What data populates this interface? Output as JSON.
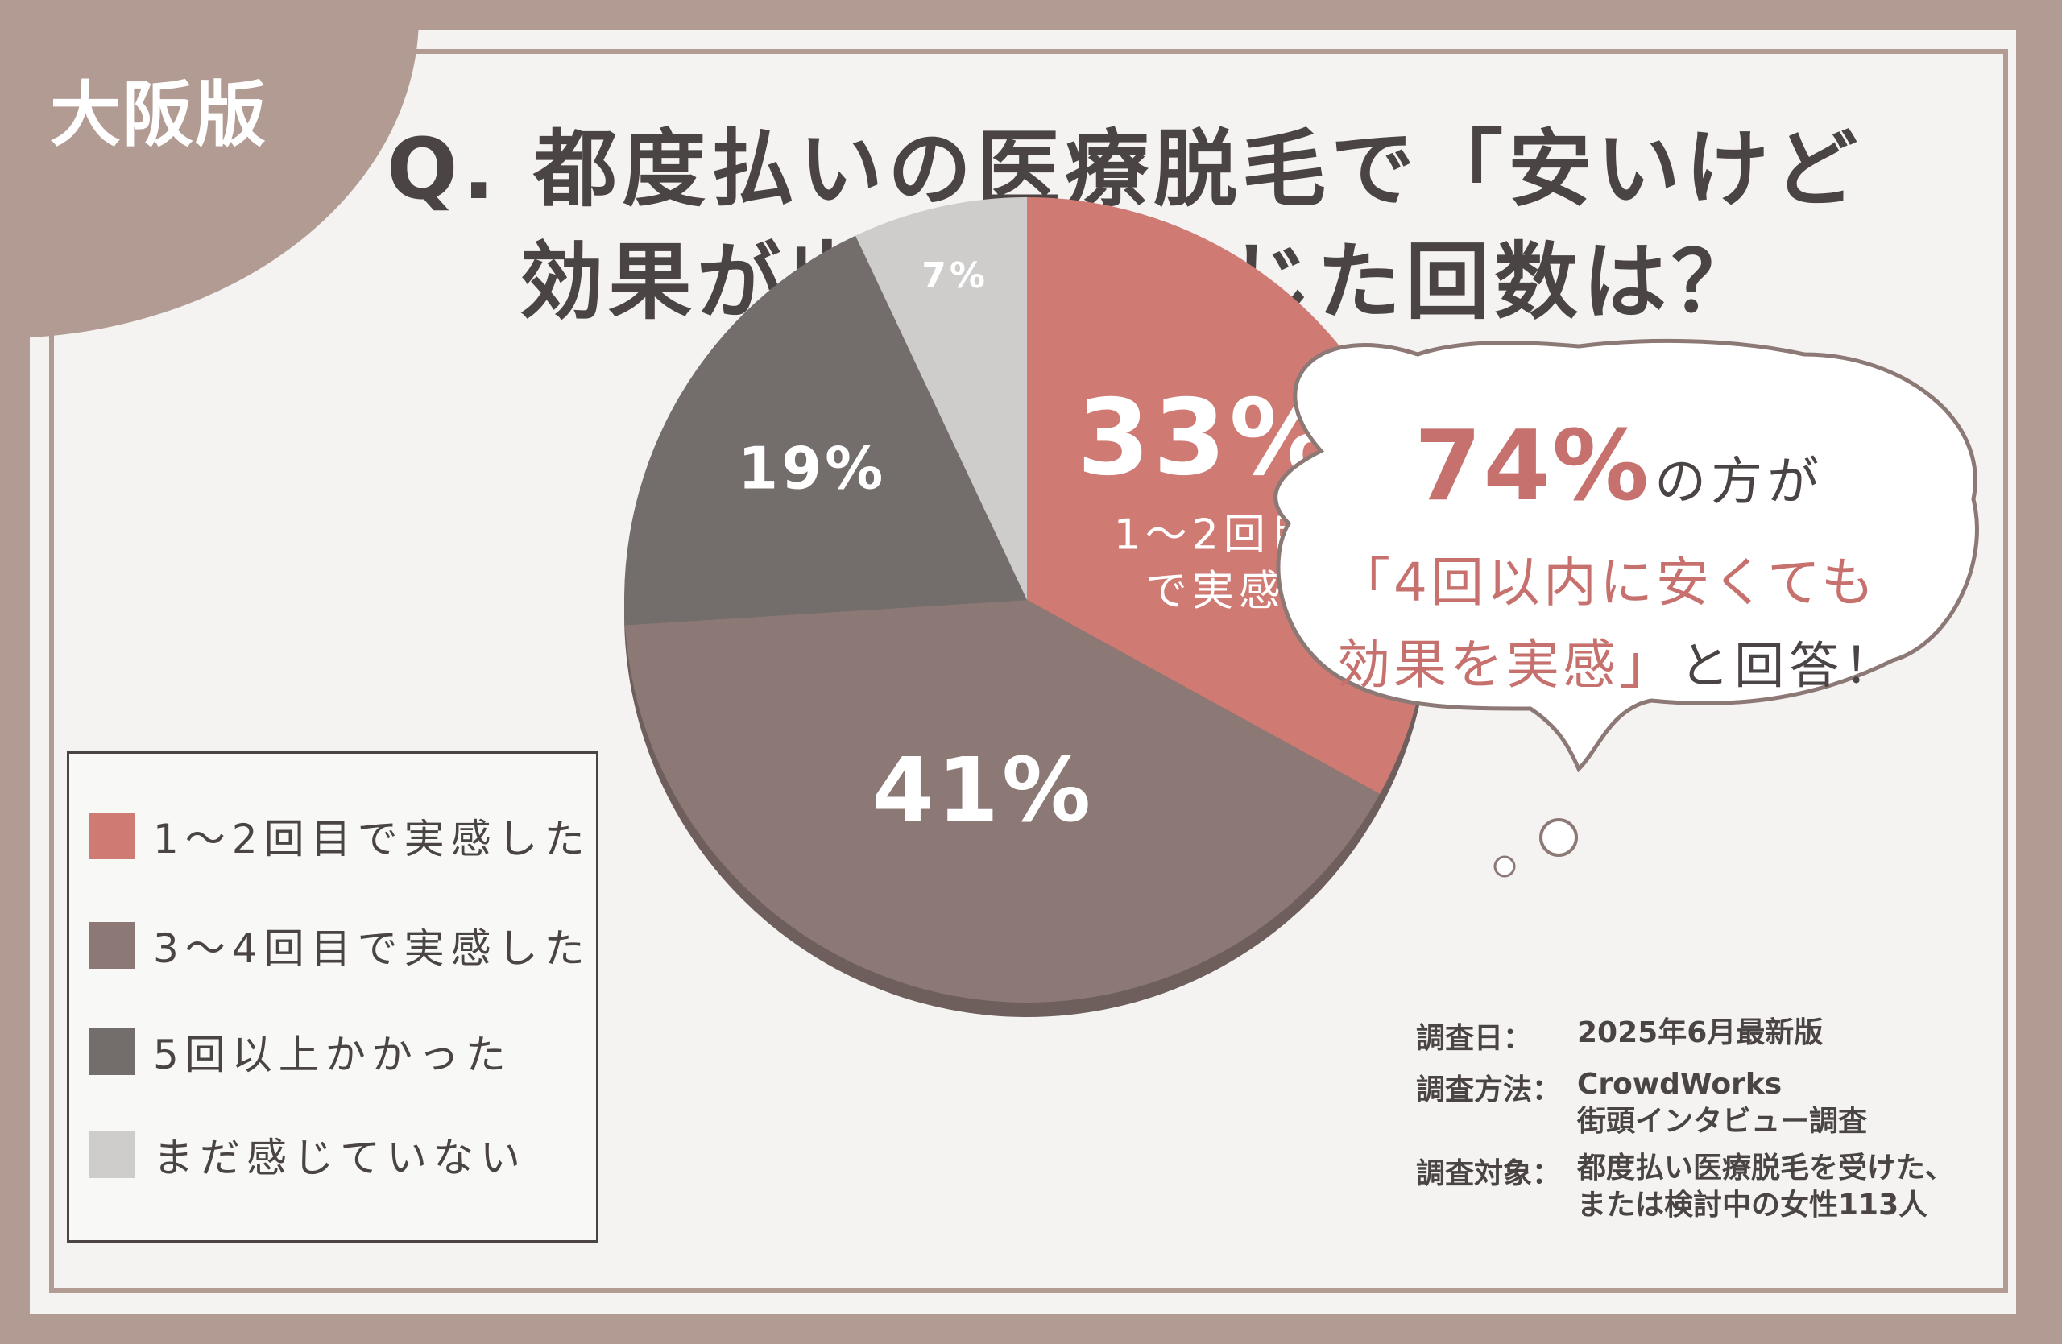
{
  "badge": "大阪版",
  "title": {
    "line1": "Q. 都度払いの医療脱毛で「安いけど",
    "line2": "効果が出た」と感じた回数は？"
  },
  "chart_data": {
    "type": "pie",
    "slices": [
      {
        "label": "1～2回目で実感した",
        "value": 33,
        "display": "33%",
        "sublabel": "1～2回目で実感",
        "color": "#d07a74"
      },
      {
        "label": "3～4回目で実感した",
        "value": 41,
        "display": "41%",
        "color": "#8c7875"
      },
      {
        "label": "5回以上かかった",
        "value": 19,
        "display": "19%",
        "color": "#736d6c"
      },
      {
        "label": "まだ感じていない",
        "value": 7,
        "display": "7%",
        "color": "#cfcdcc"
      }
    ]
  },
  "legend": {
    "items": [
      {
        "label": "1～2回目で実感した",
        "color": "#d07a74"
      },
      {
        "label": "3～4回目で実感した",
        "color": "#8c7875"
      },
      {
        "label": "5回以上かかった",
        "color": "#736d6c"
      },
      {
        "label": "まだ感じていない",
        "color": "#cfcdcc"
      }
    ]
  },
  "bubble": {
    "pct": "74%",
    "pct_suffix": "の方が",
    "line2": "「4回以内に安くても",
    "line3_pink": "効果を実感」",
    "line3_dark": "と回答！"
  },
  "notes": {
    "date_key": "調査日：",
    "date_val": "2025年6月最新版",
    "method_key": "調査方法：",
    "method_val1": "CrowdWorks",
    "method_val2": "街頭インタビュー調査",
    "target_key": "調査対象：",
    "target_val1": "都度払い医療脱毛を受けた、",
    "target_val2": "または検討中の女性113人"
  }
}
